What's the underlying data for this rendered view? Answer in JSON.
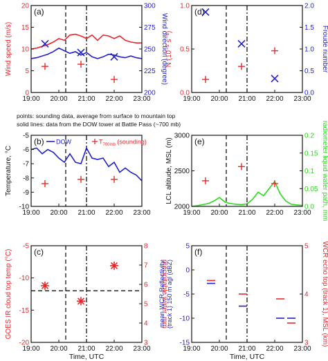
{
  "caption": {
    "line1": "points: sounding data, average from surface to mountain top",
    "line2": "solid lines: data from the DOW tower at Battle Pass (~700 mb)"
  },
  "colors": {
    "red": "#e8262b",
    "blue": "#1f1fcc",
    "green": "#22dd11",
    "black": "#111111"
  },
  "chart_data": [
    {
      "panel": "(a)",
      "type": "line",
      "ylabel_left": "Wind speed (m/s)",
      "ylabel_right": "Wind direction (degree)",
      "xlabel": "",
      "xticks": [
        "19:00",
        "20:00",
        "21:00",
        "22:00",
        "23:00"
      ],
      "xlim": [
        19,
        23
      ],
      "ylim_left": [
        0,
        20
      ],
      "yticks_left": [
        0,
        5,
        10,
        15,
        20
      ],
      "ylim_right": [
        200,
        300
      ],
      "yticks_right": [
        200,
        225,
        250,
        275,
        300
      ],
      "vlines": [
        20.25,
        21.0
      ],
      "series": [
        {
          "color": "red",
          "axis": "left",
          "x": [
            19.0,
            19.2,
            19.4,
            19.6,
            19.8,
            20.0,
            20.2,
            20.4,
            20.6,
            20.8,
            21.0,
            21.2,
            21.4,
            21.6,
            21.8,
            22.0,
            22.2,
            22.4,
            22.6,
            22.8,
            23.0
          ],
          "y": [
            10.0,
            10.2,
            10.6,
            11.0,
            11.6,
            12.4,
            12.0,
            13.2,
            13.4,
            13.0,
            12.4,
            13.2,
            12.0,
            13.2,
            13.0,
            12.4,
            13.0,
            12.0,
            11.6,
            11.4,
            11.4
          ]
        },
        {
          "color": "blue",
          "axis": "right",
          "x": [
            19.0,
            19.2,
            19.4,
            19.6,
            19.8,
            20.0,
            20.2,
            20.4,
            20.6,
            20.8,
            21.0,
            21.2,
            21.4,
            21.6,
            21.8,
            22.0,
            22.2,
            22.4,
            22.6,
            22.8,
            23.0
          ],
          "y": [
            239,
            240,
            242,
            244,
            247,
            251,
            248,
            245,
            247,
            243,
            246,
            241,
            239,
            241,
            244,
            243,
            241,
            240,
            242,
            240,
            239
          ]
        },
        {
          "color": "red",
          "marker": "+",
          "axis": "left",
          "x": [
            19.5,
            20.8,
            22.0
          ],
          "y": [
            6.0,
            6.5,
            3.0
          ]
        },
        {
          "color": "blue",
          "marker": "x",
          "axis": "right",
          "x": [
            19.5,
            20.8,
            22.0
          ],
          "y": [
            256,
            246,
            241
          ]
        }
      ]
    },
    {
      "panel": "(d)",
      "type": "scatter",
      "ylabel_left": "N (10⁻² s⁻¹)",
      "ylabel_right": "Froude number",
      "xlabel": "",
      "xticks": [
        "19:00",
        "20:00",
        "21:00",
        "22:00",
        "23:00"
      ],
      "xlim": [
        19,
        23
      ],
      "ylim_left": [
        0,
        1.0
      ],
      "yticks_left": [
        0,
        0.5,
        1.0
      ],
      "yticklabels_left": [
        "0.0",
        "0.5",
        "1.0"
      ],
      "ylim_right": [
        0,
        2.0
      ],
      "yticks_right": [
        0,
        0.5,
        1.0,
        1.5,
        2.0
      ],
      "yticklabels_right": [
        "0.0",
        "0.5",
        "1.0",
        "1.5",
        "2.0"
      ],
      "vlines": [
        20.25,
        21.0
      ],
      "series": [
        {
          "color": "red",
          "marker": "+",
          "axis": "left",
          "x": [
            19.5,
            20.8,
            22.0
          ],
          "y": [
            0.15,
            0.3,
            0.48
          ]
        },
        {
          "color": "blue",
          "marker": "x",
          "axis": "right",
          "x": [
            19.5,
            20.8,
            22.0
          ],
          "y": [
            1.85,
            1.12,
            0.32
          ]
        }
      ]
    },
    {
      "panel": "(b)",
      "type": "line",
      "ylabel_left": "Temperature, °C",
      "xlabel": "",
      "legend": {
        "line": "DOW",
        "marker": "T",
        "marker_sub": "700mb",
        "marker_suffix": " (sounding)"
      },
      "xticks": [
        "19:00",
        "20:00",
        "21:00",
        "22:00",
        "23:00"
      ],
      "xlim": [
        19,
        23
      ],
      "ylim_left": [
        -10,
        -5
      ],
      "yticks_left": [
        -10,
        -9,
        -8,
        -7,
        -6,
        -5
      ],
      "vlines": [
        20.25,
        21.0
      ],
      "series": [
        {
          "color": "blue",
          "axis": "left",
          "x": [
            19.0,
            19.2,
            19.4,
            19.6,
            19.8,
            20.0,
            20.2,
            20.4,
            20.6,
            20.8,
            21.0,
            21.2,
            21.4,
            21.6,
            21.8,
            22.0,
            22.2,
            22.4,
            22.6,
            22.8,
            23.0
          ],
          "y": [
            -6.0,
            -5.9,
            -6.3,
            -6.0,
            -6.2,
            -6.6,
            -6.9,
            -6.3,
            -6.9,
            -7.0,
            -5.9,
            -6.6,
            -6.7,
            -6.6,
            -7.2,
            -6.9,
            -7.6,
            -7.3,
            -7.6,
            -7.8,
            -8.2
          ]
        },
        {
          "color": "red",
          "marker": "+",
          "axis": "left",
          "x": [
            19.5,
            20.8,
            22.0
          ],
          "y": [
            -8.4,
            -8.1,
            -8.1
          ]
        }
      ]
    },
    {
      "panel": "(e)",
      "type": "line",
      "ylabel_left": "LCL altitude, MSL (m)",
      "ylabel_right": "radiometer liquid water path, mm",
      "xlabel": "",
      "xticks": [
        "19:00",
        "20:00",
        "21:00",
        "22:00",
        "23:00"
      ],
      "xlim": [
        19,
        23
      ],
      "ylim_left": [
        2000,
        3000
      ],
      "yticks_left": [
        2000,
        2500,
        3000
      ],
      "ylim_right": [
        0,
        0.2
      ],
      "yticks_right": [
        0,
        0.05,
        0.1,
        0.15,
        0.2
      ],
      "yticklabels_right": [
        "0.0",
        "0.05",
        "0.1",
        "0.15",
        "0.2"
      ],
      "vlines": [
        20.25,
        21.0
      ],
      "series": [
        {
          "color": "green",
          "axis": "right",
          "x": [
            19.0,
            19.2,
            19.4,
            19.6,
            19.8,
            20.0,
            20.2,
            20.4,
            20.6,
            20.8,
            21.0,
            21.2,
            21.4,
            21.6,
            21.8,
            22.0,
            22.2,
            22.4,
            22.6,
            22.8,
            23.0
          ],
          "y": [
            0.0,
            0.002,
            0.005,
            0.008,
            0.015,
            0.025,
            0.012,
            0.008,
            0.006,
            0.005,
            0.007,
            0.02,
            0.04,
            0.03,
            0.05,
            0.07,
            0.035,
            0.015,
            0.006,
            0.004,
            0.003
          ]
        },
        {
          "color": "red",
          "marker": "+",
          "axis": "left",
          "x": [
            19.5,
            20.8,
            22.0
          ],
          "y": [
            2360,
            2560,
            2320
          ]
        }
      ]
    },
    {
      "panel": "(c)",
      "type": "scatter",
      "ylabel_left": "GOES IR cloud top temp (°C)",
      "ylabel_right": "precipitable water, mm",
      "xlabel": "Time, UTC",
      "xticks": [
        "19:00",
        "20:00",
        "21:00",
        "22:00",
        "23:00"
      ],
      "xlim": [
        19,
        23
      ],
      "ylim_left": [
        -20,
        -5
      ],
      "yticks_left": [
        -20,
        -15,
        -10,
        -5
      ],
      "ylim_right": [
        3,
        8
      ],
      "yticks_right": [
        3,
        4,
        5,
        6,
        7,
        8
      ],
      "vlines": [
        20.25,
        21.0
      ],
      "hline": -12,
      "series": [
        {
          "color": "red",
          "marker": "*",
          "axis": "left",
          "x": [
            19.5,
            20.8,
            22.0
          ],
          "y": [
            -11.2,
            -13.6,
            -8.1
          ]
        }
      ]
    },
    {
      "panel": "(f)",
      "type": "scatter",
      "ylabel_left": "mean WCR Reflectivity",
      "ylabel_left2": "(track 1) 150 m agl (dBZ)",
      "ylabel_right": "WCR echo top (track 1), MSL (km)",
      "xlabel": "Time, UTC",
      "xticks": [
        "19:00",
        "20:00",
        "21:00",
        "22:00",
        "23:00"
      ],
      "xlim": [
        19,
        23
      ],
      "ylim_left": [
        -15,
        5
      ],
      "yticks_left": [
        -15,
        -10,
        -5,
        0,
        5
      ],
      "ylim_right": [
        3,
        5
      ],
      "yticks_right": [
        3,
        4,
        5
      ],
      "vlines": [
        20.25,
        21.0
      ],
      "series": [
        {
          "color": "blue",
          "marker": "-",
          "axis": "left",
          "x": [
            19.7,
            20.85,
            22.2,
            22.6
          ],
          "y": [
            -2.8,
            -7.5,
            -10.0,
            -10.0
          ]
        },
        {
          "color": "red",
          "marker": "-",
          "axis": "right",
          "x": [
            19.7,
            20.85,
            22.2,
            22.6
          ],
          "y": [
            4.28,
            4.0,
            3.9,
            3.4
          ]
        }
      ]
    }
  ]
}
